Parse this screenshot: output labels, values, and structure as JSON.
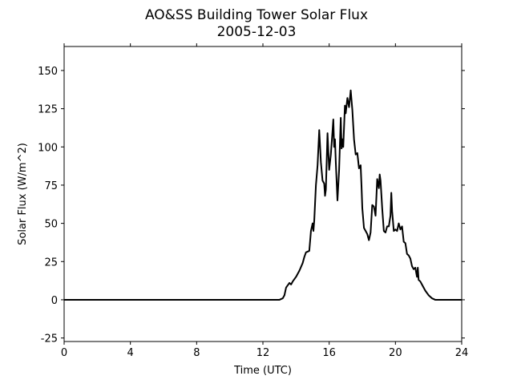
{
  "chart_data": {
    "type": "line",
    "title": "AO&SS Building Tower Solar Flux",
    "subtitle": "2005-12-03",
    "x_label": "Time (UTC)",
    "y_label": "Solar Flux (W/m^2)",
    "xlim": [
      0,
      24
    ],
    "xticks": [
      0,
      4,
      8,
      12,
      16,
      20,
      24
    ],
    "ylim": [
      -27.3,
      165.7
    ],
    "yticks": [
      -25,
      0,
      25,
      50,
      75,
      100,
      125,
      150
    ],
    "series": [
      {
        "name": "Solar Flux",
        "color": "#000000",
        "x": [
          0,
          13.0,
          13.2,
          13.3,
          13.4,
          13.6,
          13.7,
          13.8,
          14.0,
          14.2,
          14.4,
          14.5,
          14.6,
          14.8,
          14.9,
          15.0,
          15.05,
          15.1,
          15.2,
          15.3,
          15.4,
          15.5,
          15.6,
          15.7,
          15.75,
          15.8,
          15.9,
          16.0,
          16.1,
          16.2,
          16.25,
          16.3,
          16.35,
          16.4,
          16.5,
          16.6,
          16.7,
          16.75,
          16.8,
          16.85,
          16.95,
          17.0,
          17.1,
          17.2,
          17.3,
          17.4,
          17.5,
          17.6,
          17.7,
          17.8,
          17.9,
          17.95,
          18.0,
          18.1,
          18.2,
          18.3,
          18.4,
          18.5,
          18.6,
          18.7,
          18.8,
          18.9,
          19.0,
          19.05,
          19.1,
          19.2,
          19.3,
          19.4,
          19.5,
          19.6,
          19.7,
          19.75,
          19.8,
          19.9,
          20.0,
          20.1,
          20.2,
          20.3,
          20.4,
          20.5,
          20.6,
          20.7,
          20.8,
          20.9,
          21.0,
          21.1,
          21.2,
          21.3,
          21.35,
          21.4,
          21.5,
          21.6,
          21.8,
          22.0,
          22.2,
          22.4,
          24
        ],
        "values": [
          0,
          0,
          1,
          3,
          8,
          11,
          10,
          12,
          15,
          19,
          24,
          28,
          31,
          32,
          45,
          50,
          45,
          52,
          75,
          88,
          111,
          90,
          78,
          76,
          68,
          72,
          109,
          85,
          95,
          110,
          118,
          100,
          105,
          90,
          65,
          85,
          119,
          99,
          105,
          100,
          127,
          122,
          132,
          126,
          137,
          124,
          105,
          95,
          96,
          86,
          88,
          75,
          60,
          47,
          45,
          43,
          39,
          44,
          62,
          61,
          55,
          79,
          73,
          82,
          78,
          60,
          45,
          44,
          48,
          48,
          55,
          70,
          58,
          45,
          46,
          45,
          50,
          46,
          48,
          38,
          37,
          30,
          29,
          27,
          22,
          20,
          21,
          15,
          21,
          13,
          12,
          10,
          6,
          3,
          1,
          0,
          0
        ]
      }
    ]
  }
}
